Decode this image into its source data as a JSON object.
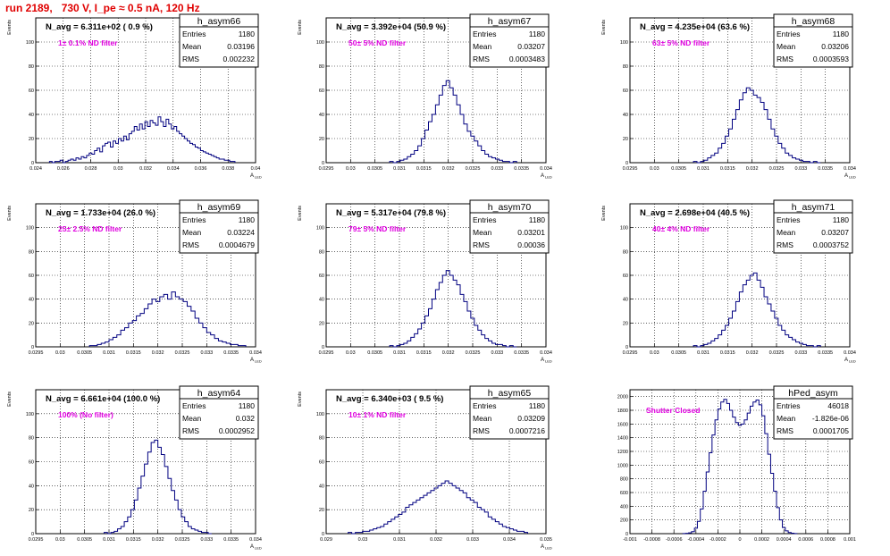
{
  "title": "run 2189,   730 V, I_pe ≈ 0.5 nA, 120 Hz",
  "colors": {
    "histogram": "#000080",
    "note": "#e000e0",
    "title": "#e00000",
    "grid": "#000000"
  },
  "chart_data": [
    {
      "type": "bar",
      "name": "h_asym66",
      "nline": "N_avg = 6.311e+02 ( 0.9 %)",
      "note": "1± 0.1% ND filter",
      "stats": [
        [
          "Entries",
          "1180"
        ],
        [
          "Mean",
          "0.03196"
        ],
        [
          "RMS",
          "0.002232"
        ]
      ],
      "ylabel": "Events",
      "xlabel": "A",
      "xlabel_sub": "LED",
      "xlim": [
        0.024,
        0.04
      ],
      "ylim": [
        0,
        120
      ],
      "xticks": [
        "0.024",
        "0.026",
        "0.028",
        "0.03",
        "0.032",
        "0.034",
        "0.036",
        "0.038",
        "0.04"
      ],
      "yticks": [
        "0",
        "20",
        "40",
        "60",
        "80",
        "100"
      ],
      "x_range": [
        0.025,
        0.0385
      ],
      "values": [
        1,
        0,
        1,
        1,
        2,
        0,
        1,
        2,
        3,
        2,
        4,
        3,
        5,
        4,
        6,
        8,
        7,
        10,
        12,
        9,
        14,
        16,
        17,
        13,
        18,
        16,
        20,
        18,
        22,
        19,
        24,
        26,
        30,
        27,
        32,
        28,
        34,
        30,
        35,
        33,
        31,
        38,
        34,
        30,
        36,
        32,
        28,
        30,
        26,
        24,
        22,
        20,
        18,
        16,
        15,
        13,
        12,
        10,
        9,
        8,
        7,
        6,
        5,
        4,
        3,
        3,
        2,
        2,
        1,
        1
      ]
    },
    {
      "type": "bar",
      "name": "h_asym67",
      "nline": "N_avg = 3.392e+04 (50.9 %)",
      "note": "50± 5% ND filter",
      "stats": [
        [
          "Entries",
          "1180"
        ],
        [
          "Mean",
          "0.03207"
        ],
        [
          "RMS",
          "0.0003483"
        ]
      ],
      "ylabel": "Events",
      "xlabel": "A",
      "xlabel_sub": "LED",
      "xlim": [
        0.0295,
        0.034
      ],
      "ylim": [
        0,
        120
      ],
      "xticks": [
        "0.0295",
        "0.03",
        "0.0305",
        "0.031",
        "0.0315",
        "0.032",
        "0.0325",
        "0.033",
        "0.0335",
        "0.034"
      ],
      "yticks": [
        "0",
        "20",
        "40",
        "60",
        "80",
        "100"
      ],
      "x_range": [
        0.0308,
        0.0334
      ],
      "values": [
        1,
        0,
        1,
        2,
        3,
        5,
        7,
        10,
        14,
        20,
        27,
        34,
        40,
        48,
        56,
        64,
        68,
        62,
        56,
        48,
        40,
        32,
        26,
        22,
        18,
        14,
        10,
        7,
        5,
        4,
        3,
        2,
        1,
        1,
        0,
        1
      ]
    },
    {
      "type": "bar",
      "name": "h_asym68",
      "nline": "N_avg = 4.235e+04 (63.6 %)",
      "note": "63± 5% ND filter",
      "stats": [
        [
          "Entries",
          "1180"
        ],
        [
          "Mean",
          "0.03206"
        ],
        [
          "RMS",
          "0.0003593"
        ]
      ],
      "ylabel": "Events",
      "xlabel": "A",
      "xlabel_sub": "LED",
      "xlim": [
        0.0295,
        0.034
      ],
      "ylim": [
        0,
        120
      ],
      "xticks": [
        "0.0295",
        "0.03",
        "0.0305",
        "0.031",
        "0.0315",
        "0.032",
        "0.0325",
        "0.033",
        "0.0335",
        "0.034"
      ],
      "yticks": [
        "0",
        "20",
        "40",
        "60",
        "80",
        "100"
      ],
      "x_range": [
        0.0308,
        0.0334
      ],
      "values": [
        1,
        0,
        1,
        2,
        4,
        6,
        8,
        12,
        16,
        22,
        28,
        36,
        44,
        52,
        58,
        62,
        60,
        56,
        54,
        50,
        44,
        36,
        28,
        22,
        16,
        12,
        8,
        6,
        4,
        3,
        2,
        1,
        1,
        0,
        1,
        0
      ]
    },
    {
      "type": "bar",
      "name": "h_asym69",
      "nline": "N_avg = 1.733e+04 (26.0 %)",
      "note": "25± 2.5% ND filter",
      "stats": [
        [
          "Entries",
          "1180"
        ],
        [
          "Mean",
          "0.03224"
        ],
        [
          "RMS",
          "0.0004679"
        ]
      ],
      "ylabel": "Events",
      "xlabel": "A",
      "xlabel_sub": "LED",
      "xlim": [
        0.0295,
        0.034
      ],
      "ylim": [
        0,
        120
      ],
      "xticks": [
        "0.0295",
        "0.03",
        "0.0305",
        "0.031",
        "0.0315",
        "0.032",
        "0.0325",
        "0.033",
        "0.0335",
        "0.034"
      ],
      "yticks": [
        "0",
        "20",
        "40",
        "60",
        "80",
        "100"
      ],
      "x_range": [
        0.0306,
        0.0338
      ],
      "values": [
        1,
        1,
        2,
        3,
        4,
        6,
        8,
        10,
        14,
        16,
        20,
        22,
        26,
        28,
        32,
        36,
        40,
        38,
        42,
        44,
        40,
        46,
        42,
        40,
        38,
        34,
        30,
        24,
        20,
        16,
        12,
        10,
        7,
        5,
        4,
        3,
        2,
        2,
        1,
        1
      ]
    },
    {
      "type": "bar",
      "name": "h_asym70",
      "nline": "N_avg = 5.317e+04 (79.8 %)",
      "note": "79± 5% ND filter",
      "stats": [
        [
          "Entries",
          "1180"
        ],
        [
          "Mean",
          "0.03201"
        ],
        [
          "RMS",
          "0.00036"
        ]
      ],
      "ylabel": "Events",
      "xlabel": "A",
      "xlabel_sub": "LED",
      "xlim": [
        0.0295,
        0.034
      ],
      "ylim": [
        0,
        120
      ],
      "xticks": [
        "0.0295",
        "0.03",
        "0.0305",
        "0.031",
        "0.0315",
        "0.032",
        "0.0325",
        "0.033",
        "0.0335",
        "0.034"
      ],
      "yticks": [
        "0",
        "20",
        "40",
        "60",
        "80",
        "100"
      ],
      "x_range": [
        0.0308,
        0.0334
      ],
      "values": [
        1,
        0,
        1,
        2,
        3,
        5,
        8,
        11,
        15,
        20,
        26,
        32,
        40,
        48,
        54,
        60,
        64,
        60,
        56,
        52,
        44,
        38,
        30,
        24,
        18,
        14,
        10,
        7,
        5,
        3,
        2,
        2,
        1,
        0,
        1,
        0
      ]
    },
    {
      "type": "bar",
      "name": "h_asym71",
      "nline": "N_avg = 2.698e+04 (40.5 %)",
      "note": "40± 4% ND filter",
      "stats": [
        [
          "Entries",
          "1180"
        ],
        [
          "Mean",
          "0.03207"
        ],
        [
          "RMS",
          "0.0003752"
        ]
      ],
      "ylabel": "Events",
      "xlabel": "A",
      "xlabel_sub": "LED",
      "xlim": [
        0.0295,
        0.034
      ],
      "ylim": [
        0,
        120
      ],
      "xticks": [
        "0.0295",
        "0.03",
        "0.0305",
        "0.031",
        "0.0315",
        "0.032",
        "0.0325",
        "0.033",
        "0.0335",
        "0.034"
      ],
      "yticks": [
        "0",
        "20",
        "40",
        "60",
        "80",
        "100"
      ],
      "x_range": [
        0.0308,
        0.0334
      ],
      "values": [
        1,
        0,
        1,
        2,
        3,
        5,
        7,
        10,
        14,
        18,
        24,
        30,
        38,
        46,
        52,
        56,
        60,
        62,
        56,
        50,
        42,
        36,
        30,
        24,
        18,
        14,
        10,
        8,
        6,
        4,
        3,
        2,
        1,
        1,
        0,
        1
      ]
    },
    {
      "type": "bar",
      "name": "h_asym64",
      "nline": "N_avg = 6.661e+04 (100.0 %)",
      "note": "100% (No filter)",
      "stats": [
        [
          "Entries",
          "1180"
        ],
        [
          "Mean",
          "0.032"
        ],
        [
          "RMS",
          "0.0002952"
        ]
      ],
      "ylabel": "Events",
      "xlabel": "A",
      "xlabel_sub": "LED",
      "xlim": [
        0.0295,
        0.034
      ],
      "ylim": [
        0,
        120
      ],
      "xticks": [
        "0.0295",
        "0.03",
        "0.0305",
        "0.031",
        "0.0315",
        "0.032",
        "0.0325",
        "0.033",
        "0.0335",
        "0.034"
      ],
      "yticks": [
        "0",
        "20",
        "40",
        "60",
        "80",
        "100"
      ],
      "x_range": [
        0.0309,
        0.0331
      ],
      "values": [
        1,
        0,
        1,
        2,
        4,
        6,
        10,
        14,
        20,
        28,
        38,
        48,
        58,
        68,
        76,
        78,
        72,
        66,
        56,
        46,
        36,
        28,
        20,
        14,
        10,
        6,
        4,
        3,
        2,
        1,
        1,
        0
      ]
    },
    {
      "type": "bar",
      "name": "h_asym65",
      "nline": "N_avg = 6.340e+03 ( 9.5 %)",
      "note": "10± 1% ND filter",
      "stats": [
        [
          "Entries",
          "1180"
        ],
        [
          "Mean",
          "0.03209"
        ],
        [
          "RMS",
          "0.0007216"
        ]
      ],
      "ylabel": "Events",
      "xlabel": "A",
      "xlabel_sub": "LED",
      "xlim": [
        0.029,
        0.035
      ],
      "ylim": [
        0,
        120
      ],
      "xticks": [
        "0.029",
        "0.03",
        "0.031",
        "0.032",
        "0.033",
        "0.034",
        "0.035"
      ],
      "yticks": [
        "0",
        "20",
        "40",
        "60",
        "80",
        "100"
      ],
      "x_range": [
        0.0296,
        0.0345
      ],
      "values": [
        1,
        0,
        1,
        1,
        2,
        2,
        3,
        4,
        5,
        6,
        8,
        10,
        12,
        14,
        16,
        18,
        22,
        24,
        26,
        28,
        30,
        32,
        34,
        36,
        38,
        40,
        42,
        44,
        42,
        40,
        38,
        36,
        34,
        30,
        28,
        26,
        22,
        20,
        18,
        14,
        12,
        10,
        8,
        6,
        5,
        4,
        3,
        2,
        2,
        1
      ]
    },
    {
      "type": "bar",
      "name": "hPed_asym",
      "nline": "",
      "note": "Shutter Closed",
      "stats": [
        [
          "Entries",
          "46018"
        ],
        [
          "Mean",
          "-1.826e-06"
        ],
        [
          "RMS",
          "0.0001705"
        ]
      ],
      "ylabel": "",
      "xlabel": "",
      "xlabel_sub": "",
      "xlim": [
        -0.001,
        0.001
      ],
      "ylim": [
        0,
        2100
      ],
      "xticks": [
        "-0.001",
        "-0.0008",
        "-0.0006",
        "-0.0004",
        "-0.0002",
        "0",
        "0.0002",
        "0.0004",
        "0.0006",
        "0.0008",
        "0.001"
      ],
      "yticks": [
        "0",
        "200",
        "400",
        "600",
        "800",
        "1000",
        "1200",
        "1400",
        "1600",
        "1800",
        "2000"
      ],
      "x_range": [
        -0.00052,
        0.00052
      ],
      "values": [
        2,
        5,
        12,
        30,
        80,
        180,
        360,
        620,
        900,
        1180,
        1440,
        1660,
        1820,
        1920,
        1960,
        1900,
        1800,
        1700,
        1620,
        1580,
        1600,
        1660,
        1760,
        1860,
        1920,
        1950,
        1880,
        1720,
        1460,
        1160,
        880,
        620,
        380,
        200,
        90,
        40,
        16,
        6,
        2
      ]
    }
  ]
}
